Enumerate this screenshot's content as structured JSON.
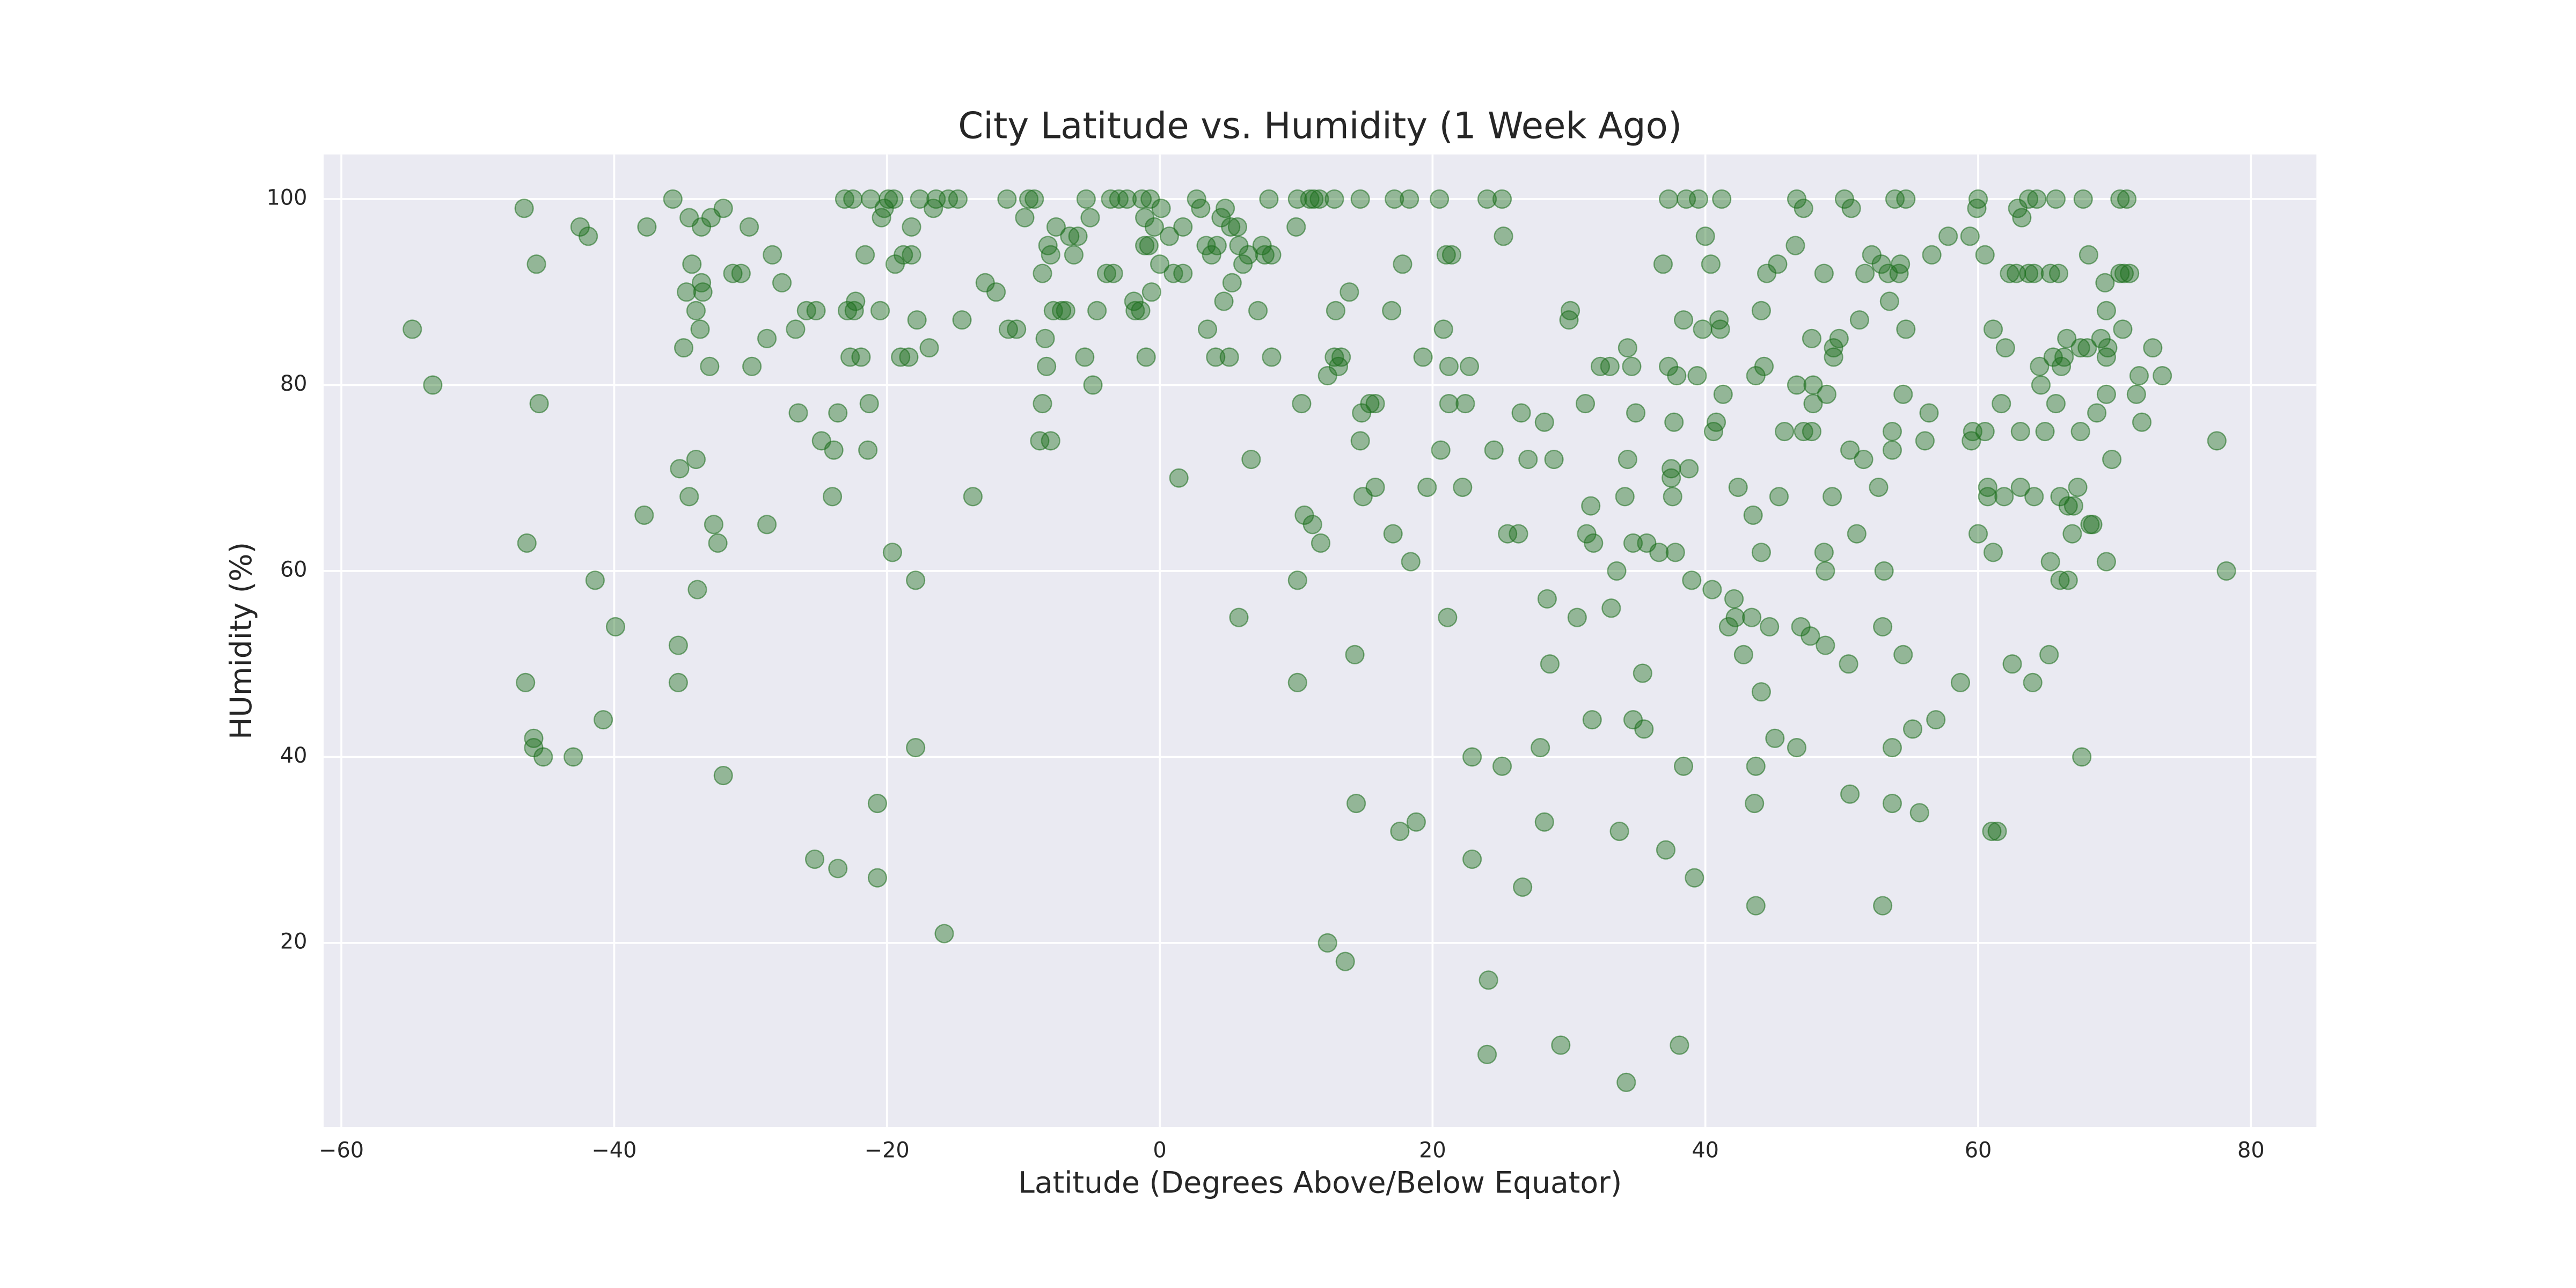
{
  "chart_data": {
    "type": "scatter",
    "title": "City Latitude vs. Humidity (1 Week Ago)",
    "x_label": "Latitude (Degrees Above/Below Equator)",
    "y_label": "HUmidity (%)",
    "color": "#1a6e1a",
    "grid": true,
    "xlim": [
      -61.3,
      84.8
    ],
    "ylim": [
      0.2,
      104.8
    ],
    "xticks": [
      {
        "value": -60,
        "label": "−60"
      },
      {
        "value": -40,
        "label": "−40"
      },
      {
        "value": -20,
        "label": "−20"
      },
      0,
      20,
      40,
      60,
      80
    ],
    "yticks": [
      20,
      40,
      60,
      80,
      100
    ],
    "x": [
      -54.8,
      -53.3,
      -46.6,
      -46.4,
      -46.5,
      -45.7,
      -45.5,
      -45.9,
      -45.9,
      -45.2,
      -43,
      -42.5,
      -41.9,
      -41.4,
      -40.8,
      -39.9,
      -37.8,
      -37.6,
      -35.7,
      -35.2,
      -35.3,
      -35.3,
      -34.9,
      -34.7,
      -34.5,
      -34.5,
      -34.3,
      -34,
      -34,
      -33.9,
      -33.7,
      -33.6,
      -33.5,
      -33.6,
      -33,
      -32.9,
      -32.7,
      -32.4,
      -32,
      -32,
      -31.3,
      -30.7,
      -30.1,
      -29.9,
      -28.8,
      -28.8,
      -28.4,
      -27.7,
      -26.7,
      -26.5,
      -25.9,
      -25.2,
      -25.3,
      -24.8,
      -24,
      -23.9,
      -23.6,
      -23.6,
      -23.1,
      -22.9,
      -22.7,
      -22.5,
      -22.4,
      -22.3,
      -21.9,
      -21.6,
      -21.4,
      -21.3,
      -21.2,
      -20.7,
      -20.7,
      -20.5,
      -20.4,
      -20.2,
      -19.9,
      -19.6,
      -19.5,
      -19.4,
      -19,
      -18.8,
      -18.4,
      -18.2,
      -18.2,
      -17.9,
      -17.9,
      -17.8,
      -17.6,
      -16.9,
      -16.6,
      -16.4,
      -15.8,
      -15.5,
      -14.8,
      -14.5,
      -13.7,
      -12.8,
      -12,
      -11.2,
      -11.1,
      -10.5,
      -9.9,
      -9.6,
      -9.2,
      -8.8,
      -8.6,
      -8.6,
      -8.4,
      -8.3,
      -8.2,
      -8,
      -8,
      -7.8,
      -7.6,
      -7.2,
      -6.9,
      -6.6,
      -6.3,
      -6,
      -5.5,
      -5.4,
      -5.1,
      -4.9,
      -4.6,
      -3.9,
      -3.6,
      -3.4,
      -3,
      -2.4,
      -1.9,
      -1.8,
      -1.4,
      -1.3,
      -1.1,
      -1.1,
      -1,
      -0.8,
      -0.7,
      -0.6,
      -0.4,
      0,
      0.1,
      0.7,
      1,
      1.4,
      1.7,
      1.7,
      2.7,
      3,
      3.4,
      3.5,
      3.8,
      4.1,
      4.2,
      4.5,
      4.7,
      4.8,
      5.1,
      5.2,
      5.3,
      5.7,
      5.8,
      5.8,
      6.1,
      6.5,
      6.7,
      7.2,
      7.5,
      7.7,
      8,
      8.2,
      8.2,
      10,
      10.1,
      10.1,
      10.1,
      10.4,
      10.6,
      11,
      11.2,
      11.3,
      11.7,
      11.8,
      12.3,
      12.3,
      12.8,
      12.8,
      12.9,
      13.1,
      13.3,
      13.6,
      13.9,
      14.3,
      14.4,
      14.7,
      14.7,
      14.8,
      14.9,
      15.4,
      15.8,
      15.8,
      17,
      17.1,
      17.2,
      17.6,
      17.8,
      18.3,
      18.4,
      18.8,
      19.3,
      19.6,
      20.6,
      20.5,
      20.8,
      21,
      21.1,
      21.2,
      21.2,
      21.4,
      22.2,
      22.4,
      22.7,
      22.9,
      22.9,
      24,
      24,
      24.1,
      24.5,
      25.1,
      25.1,
      25.2,
      25.5,
      26.3,
      26.5,
      26.6,
      27,
      27.9,
      28.2,
      28.2,
      28.4,
      28.6,
      28.9,
      29.4,
      30,
      30.1,
      30.6,
      31.2,
      31.3,
      31.6,
      31.7,
      31.8,
      32.3,
      33,
      33.1,
      33.5,
      33.7,
      34.1,
      34.3,
      34.2,
      34.3,
      34.6,
      34.7,
      34.7,
      34.9,
      35.4,
      35.5,
      35.7,
      36.6,
      36.9,
      37.1,
      37.3,
      37.3,
      37.5,
      37.5,
      37.6,
      37.7,
      37.8,
      37.9,
      38.1,
      38.4,
      38.4,
      38.6,
      38.8,
      39,
      39.2,
      39.4,
      39.5,
      39.8,
      40,
      40.4,
      40.5,
      40.6,
      40.8,
      41,
      41.1,
      41.2,
      41.3,
      41.7,
      42.1,
      42.2,
      42.4,
      42.8,
      43.4,
      43.5,
      43.6,
      43.7,
      43.7,
      43.7,
      44.1,
      44.1,
      44.1,
      44.3,
      44.5,
      44.7,
      45.1,
      45.3,
      45.4,
      45.8,
      46.6,
      46.7,
      46.7,
      46.7,
      47,
      47.2,
      47.2,
      47.7,
      47.8,
      47.8,
      47.9,
      47.9,
      48.7,
      48.7,
      48.8,
      48.8,
      48.9,
      49.3,
      49.4,
      49.4,
      49.8,
      50.2,
      50.5,
      50.6,
      50.6,
      50.7,
      51.1,
      51.3,
      51.6,
      51.7,
      52.2,
      52.7,
      52.9,
      53,
      53,
      53.1,
      53.4,
      53.5,
      53.7,
      53.7,
      53.7,
      53.7,
      53.9,
      54.2,
      54.3,
      54.5,
      54.5,
      54.7,
      54.7,
      55.2,
      55.7,
      56.1,
      56.4,
      56.6,
      56.9,
      57.8,
      58.7,
      59.4,
      59.5,
      59.6,
      59.9,
      60,
      60,
      60.5,
      60.5,
      60.7,
      60.7,
      61,
      61.1,
      61.1,
      61.4,
      61.7,
      61.9,
      62,
      62.3,
      62.5,
      62.8,
      62.9,
      63.1,
      63.1,
      63.2,
      63.7,
      63.7,
      64,
      64.1,
      64.1,
      64.3,
      64.5,
      64.6,
      64.9,
      65.2,
      65.3,
      65.3,
      65.5,
      65.7,
      65.7,
      65.9,
      66,
      66,
      66.1,
      66.3,
      66.5,
      66.6,
      66.6,
      66.9,
      67,
      67.3,
      67.5,
      67.5,
      67.6,
      67.7,
      68,
      68.1,
      68.2,
      68.4,
      68.7,
      69,
      69.3,
      69.4,
      69.4,
      69.4,
      69.4,
      69.5,
      69.8,
      70.4,
      70.4,
      70.6,
      70.7,
      70.9,
      71.1,
      71.6,
      71.8,
      72,
      72.8,
      73.5,
      77.5,
      78.2
    ],
    "values": [
      86,
      80,
      99,
      63,
      48,
      93,
      78,
      42,
      41,
      40,
      40,
      97,
      96,
      59,
      44,
      54,
      66,
      97,
      100,
      71,
      52,
      48,
      84,
      90,
      68,
      98,
      93,
      88,
      72,
      58,
      86,
      91,
      90,
      97,
      82,
      98,
      65,
      63,
      99,
      38,
      92,
      92,
      97,
      82,
      65,
      85,
      94,
      91,
      86,
      77,
      88,
      88,
      29,
      74,
      68,
      73,
      77,
      28,
      100,
      88,
      83,
      100,
      88,
      89,
      83,
      94,
      73,
      78,
      100,
      35,
      27,
      88,
      98,
      99,
      100,
      62,
      100,
      93,
      83,
      94,
      83,
      97,
      94,
      59,
      41,
      87,
      100,
      84,
      99,
      100,
      21,
      100,
      100,
      87,
      68,
      91,
      90,
      100,
      86,
      86,
      98,
      100,
      100,
      74,
      92,
      78,
      85,
      82,
      95,
      94,
      74,
      88,
      97,
      88,
      88,
      96,
      94,
      96,
      83,
      100,
      98,
      80,
      88,
      92,
      100,
      92,
      100,
      100,
      89,
      88,
      88,
      100,
      95,
      98,
      83,
      95,
      100,
      90,
      97,
      93,
      99,
      96,
      92,
      70,
      92,
      97,
      100,
      99,
      95,
      86,
      94,
      83,
      95,
      98,
      89,
      99,
      83,
      97,
      91,
      97,
      95,
      55,
      93,
      94,
      72,
      88,
      95,
      94,
      100,
      83,
      94,
      97,
      100,
      59,
      48,
      78,
      66,
      100,
      65,
      100,
      100,
      63,
      20,
      81,
      100,
      83,
      88,
      82,
      83,
      18,
      90,
      51,
      35,
      74,
      100,
      77,
      68,
      78,
      78,
      69,
      88,
      64,
      100,
      32,
      93,
      100,
      61,
      33,
      83,
      69,
      73,
      100,
      86,
      94,
      55,
      78,
      82,
      94,
      69,
      78,
      82,
      40,
      29,
      100,
      8,
      16,
      73,
      39,
      100,
      96,
      64,
      64,
      77,
      26,
      72,
      41,
      76,
      33,
      57,
      50,
      72,
      9,
      87,
      88,
      55,
      78,
      64,
      67,
      44,
      63,
      82,
      82,
      56,
      60,
      32,
      68,
      84,
      5,
      72,
      82,
      63,
      44,
      77,
      49,
      43,
      63,
      62,
      93,
      30,
      82,
      100,
      71,
      70,
      68,
      76,
      62,
      81,
      9,
      39,
      87,
      100,
      71,
      59,
      27,
      81,
      100,
      86,
      96,
      93,
      58,
      75,
      76,
      87,
      86,
      100,
      79,
      54,
      57,
      55,
      69,
      51,
      55,
      66,
      35,
      39,
      24,
      81,
      62,
      88,
      47,
      82,
      92,
      54,
      42,
      93,
      68,
      75,
      95,
      80,
      100,
      41,
      54,
      99,
      75,
      53,
      75,
      85,
      80,
      78,
      62,
      92,
      52,
      60,
      79,
      68,
      84,
      83,
      85,
      100,
      50,
      36,
      73,
      99,
      64,
      87,
      72,
      92,
      94,
      69,
      93,
      24,
      54,
      60,
      92,
      89,
      41,
      35,
      73,
      75,
      100,
      92,
      93,
      79,
      51,
      86,
      100,
      43,
      34,
      74,
      77,
      94,
      44,
      96,
      48,
      96,
      74,
      75,
      99,
      100,
      64,
      75,
      94,
      68,
      69,
      32,
      86,
      62,
      32,
      78,
      68,
      84,
      92,
      50,
      92,
      99,
      75,
      69,
      98,
      100,
      92,
      48,
      92,
      68,
      100,
      82,
      80,
      75,
      51,
      61,
      92,
      83,
      78,
      100,
      92,
      59,
      68,
      82,
      83,
      85,
      67,
      59,
      64,
      67,
      69,
      84,
      75,
      40,
      100,
      84,
      94,
      65,
      65,
      77,
      85,
      91,
      88,
      79,
      83,
      61,
      84,
      72,
      92,
      100,
      86,
      92,
      100,
      92,
      79,
      81,
      76,
      84,
      81,
      74,
      60
    ]
  }
}
